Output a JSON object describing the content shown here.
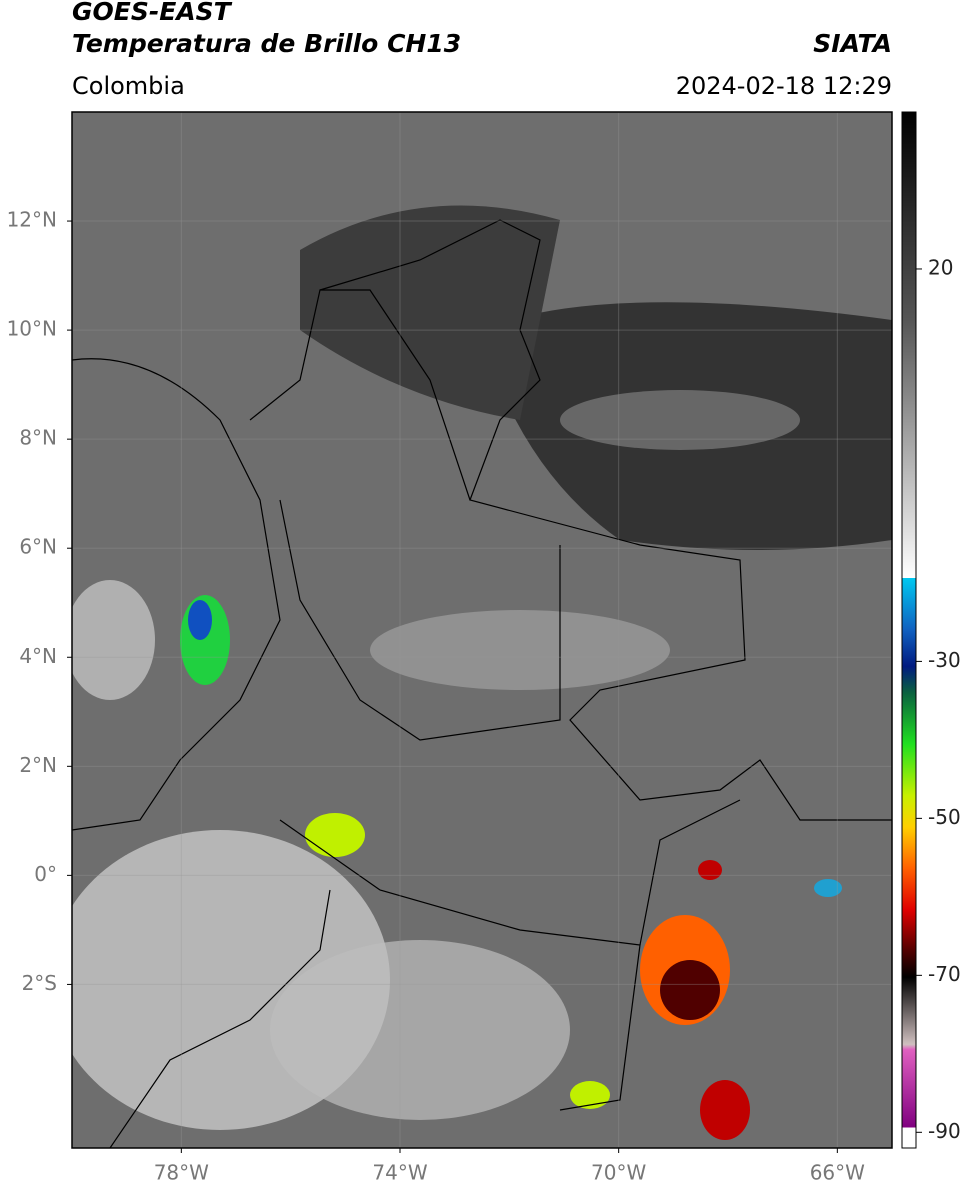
{
  "header": {
    "title": "GOES-EAST",
    "subtitle": "Temperatura de Brillo CH13",
    "source": "SIATA",
    "region": "Colombia",
    "datetime": "2024-02-18 12:29"
  },
  "chart_data": {
    "type": "map",
    "xlim": [
      -80,
      -65
    ],
    "ylim": [
      -5,
      14
    ],
    "xticks": [
      {
        "value": -78,
        "label": "78°W"
      },
      {
        "value": -74,
        "label": "74°W"
      },
      {
        "value": -70,
        "label": "70°W"
      },
      {
        "value": -66,
        "label": "66°W"
      }
    ],
    "yticks": [
      {
        "value": 12,
        "label": "12°N"
      },
      {
        "value": 10,
        "label": "10°N"
      },
      {
        "value": 8,
        "label": "8°N"
      },
      {
        "value": 6,
        "label": "6°N"
      },
      {
        "value": 4,
        "label": "4°N"
      },
      {
        "value": 2,
        "label": "2°N"
      },
      {
        "value": 0,
        "label": "0°"
      },
      {
        "value": -2,
        "label": "2°S"
      }
    ],
    "grid": true,
    "colorbar": {
      "lim": [
        -92,
        40
      ],
      "ticks": [
        20,
        -30,
        -50,
        -70,
        -90
      ]
    }
  }
}
